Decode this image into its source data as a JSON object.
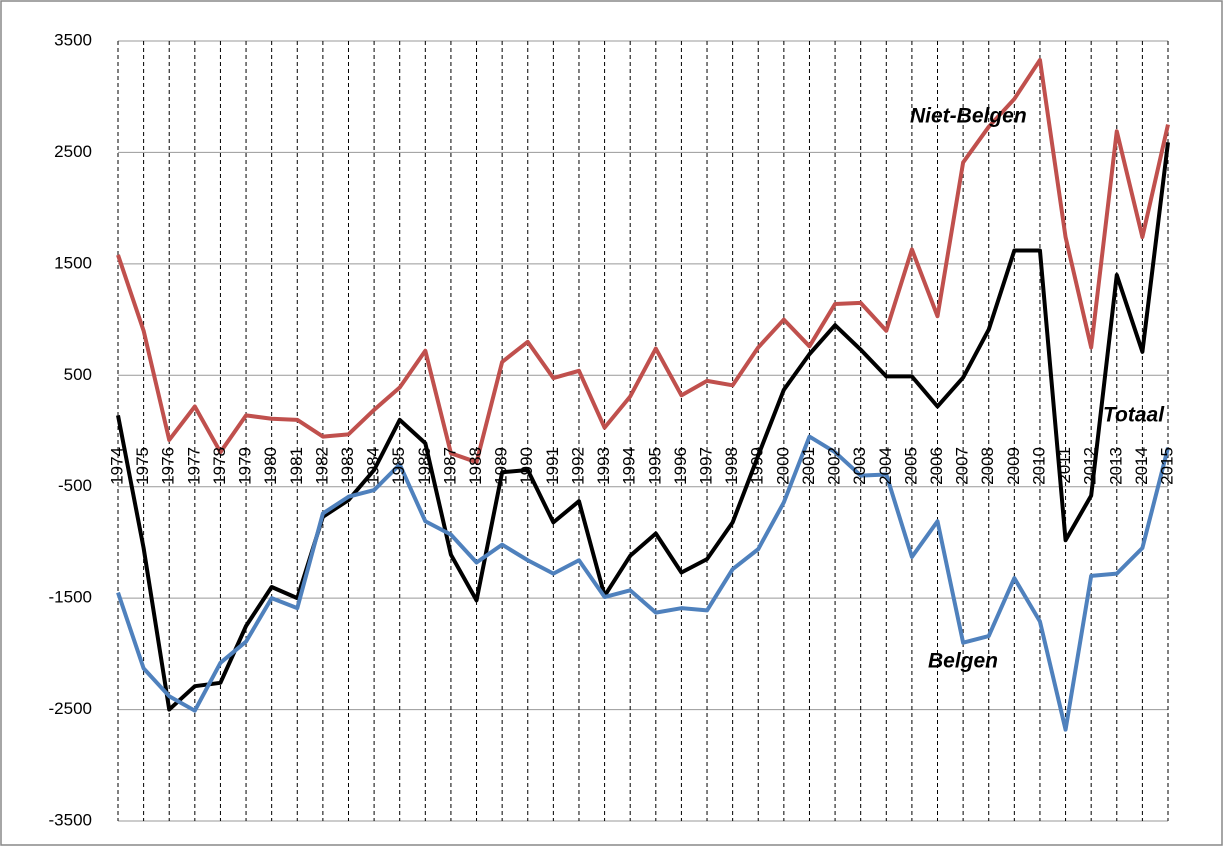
{
  "chart_data": {
    "type": "line",
    "categories": [
      "1974",
      "1975",
      "1976",
      "1977",
      "1978",
      "1979",
      "1980",
      "1981",
      "1982",
      "1983",
      "1984",
      "1985",
      "1986",
      "1987",
      "1988",
      "1989",
      "1990",
      "1991",
      "1992",
      "1993",
      "1994",
      "1995",
      "1996",
      "1997",
      "1998",
      "1999",
      "2000",
      "2001",
      "2002",
      "2003",
      "2004",
      "2005",
      "2006",
      "2007",
      "2008",
      "2009",
      "2010",
      "2011",
      "2012",
      "2013",
      "2014",
      "2015"
    ],
    "series": [
      {
        "name": "Niet-Belgen",
        "color": "#c0504d",
        "values": [
          1580,
          900,
          -80,
          220,
          -190,
          140,
          110,
          100,
          -50,
          -30,
          190,
          390,
          720,
          -200,
          -280,
          620,
          800,
          475,
          540,
          30,
          310,
          740,
          320,
          450,
          410,
          750,
          1000,
          760,
          1140,
          1150,
          900,
          1630,
          1030,
          2410,
          2730,
          2980,
          3330,
          1740,
          750,
          2690,
          1740,
          2750
        ]
      },
      {
        "name": "Totaal",
        "color": "#000000",
        "values": [
          140,
          -1050,
          -2500,
          -2290,
          -2260,
          -1750,
          -1400,
          -1500,
          -770,
          -620,
          -350,
          100,
          -110,
          -1110,
          -1520,
          -370,
          -350,
          -820,
          -630,
          -1480,
          -1120,
          -920,
          -1270,
          -1150,
          -820,
          -220,
          370,
          690,
          950,
          730,
          490,
          490,
          220,
          480,
          910,
          1620,
          1620,
          -980,
          -580,
          1400,
          710,
          2590
        ]
      },
      {
        "name": "Belgen",
        "color": "#4f81bd",
        "values": [
          -1450,
          -2130,
          -2380,
          -2510,
          -2080,
          -1890,
          -1500,
          -1590,
          -740,
          -590,
          -530,
          -300,
          -810,
          -930,
          -1180,
          -1020,
          -1160,
          -1280,
          -1160,
          -1490,
          -1430,
          -1630,
          -1590,
          -1610,
          -1240,
          -1060,
          -640,
          -50,
          -190,
          -400,
          -390,
          -1130,
          -810,
          -1900,
          -1840,
          -1320,
          -1710,
          -2680,
          -1300,
          -1280,
          -1050,
          -150
        ]
      }
    ],
    "ylim": [
      -3500,
      3500
    ],
    "yticks": [
      3500,
      2500,
      1500,
      500,
      -500,
      -1500,
      -2500,
      -3500
    ],
    "grid": true
  }
}
